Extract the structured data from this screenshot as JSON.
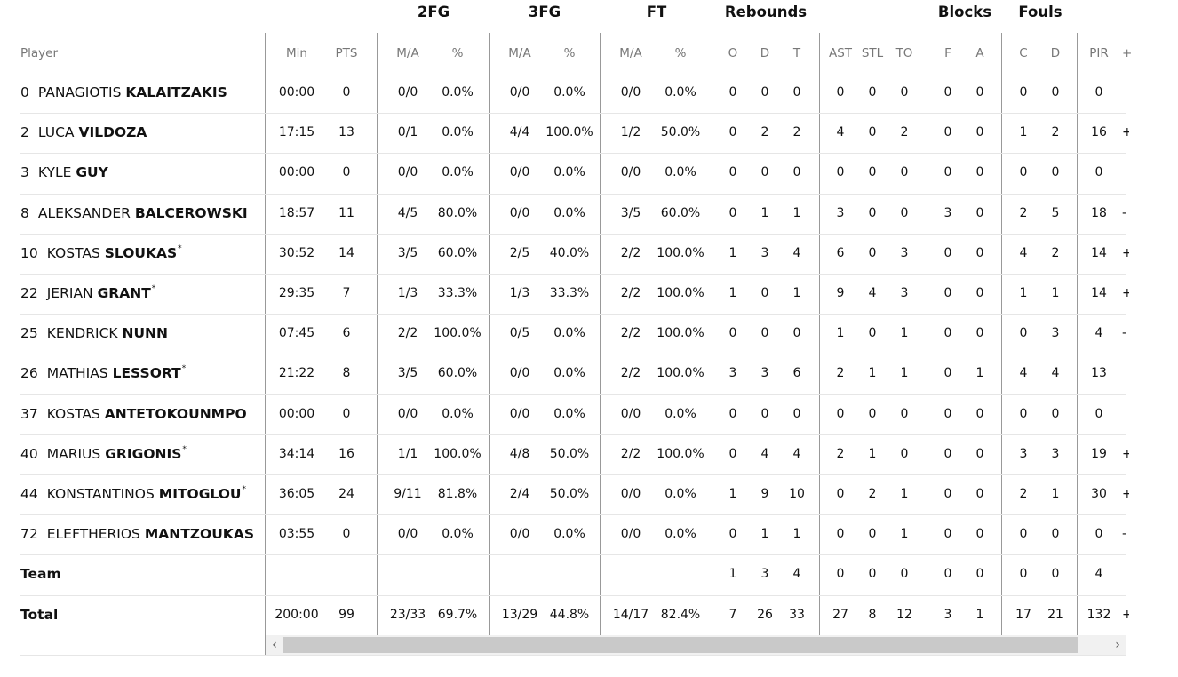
{
  "group_headers": {
    "fg2": "2FG",
    "fg3": "3FG",
    "ft": "FT",
    "rebounds": "Rebounds",
    "blocks": "Blocks",
    "fouls": "Fouls"
  },
  "col_headers": {
    "player": "Player",
    "min": "Min",
    "pts": "PTS",
    "fg2_ma": "M/A",
    "fg2_pct": "%",
    "fg3_ma": "M/A",
    "fg3_pct": "%",
    "ft_ma": "M/A",
    "ft_pct": "%",
    "reb_o": "O",
    "reb_d": "D",
    "reb_t": "T",
    "ast": "AST",
    "stl": "STL",
    "to": "TO",
    "blk_f": "F",
    "blk_a": "A",
    "foul_c": "C",
    "foul_d": "D",
    "pir": "PIR",
    "more": "+"
  },
  "players": [
    {
      "num": "0",
      "first": "PANAGIOTIS",
      "last": "KALAITZAKIS",
      "star": "",
      "min": "00:00",
      "pts": "0",
      "fg2_ma": "0/0",
      "fg2_pct": "0.0%",
      "fg3_ma": "0/0",
      "fg3_pct": "0.0%",
      "ft_ma": "0/0",
      "ft_pct": "0.0%",
      "reb_o": "0",
      "reb_d": "0",
      "reb_t": "0",
      "ast": "0",
      "stl": "0",
      "to": "0",
      "blk_f": "0",
      "blk_a": "0",
      "foul_c": "0",
      "foul_d": "0",
      "pir": "0",
      "pm": ""
    },
    {
      "num": "2",
      "first": "LUCA",
      "last": "VILDOZA",
      "star": "",
      "min": "17:15",
      "pts": "13",
      "fg2_ma": "0/1",
      "fg2_pct": "0.0%",
      "fg3_ma": "4/4",
      "fg3_pct": "100.0%",
      "ft_ma": "1/2",
      "ft_pct": "50.0%",
      "reb_o": "0",
      "reb_d": "2",
      "reb_t": "2",
      "ast": "4",
      "stl": "0",
      "to": "2",
      "blk_f": "0",
      "blk_a": "0",
      "foul_c": "1",
      "foul_d": "2",
      "pir": "16",
      "pm": "+"
    },
    {
      "num": "3",
      "first": "KYLE",
      "last": "GUY",
      "star": "",
      "min": "00:00",
      "pts": "0",
      "fg2_ma": "0/0",
      "fg2_pct": "0.0%",
      "fg3_ma": "0/0",
      "fg3_pct": "0.0%",
      "ft_ma": "0/0",
      "ft_pct": "0.0%",
      "reb_o": "0",
      "reb_d": "0",
      "reb_t": "0",
      "ast": "0",
      "stl": "0",
      "to": "0",
      "blk_f": "0",
      "blk_a": "0",
      "foul_c": "0",
      "foul_d": "0",
      "pir": "0",
      "pm": ""
    },
    {
      "num": "8",
      "first": "ALEKSANDER",
      "last": "BALCEROWSKI",
      "star": "",
      "min": "18:57",
      "pts": "11",
      "fg2_ma": "4/5",
      "fg2_pct": "80.0%",
      "fg3_ma": "0/0",
      "fg3_pct": "0.0%",
      "ft_ma": "3/5",
      "ft_pct": "60.0%",
      "reb_o": "0",
      "reb_d": "1",
      "reb_t": "1",
      "ast": "3",
      "stl": "0",
      "to": "0",
      "blk_f": "3",
      "blk_a": "0",
      "foul_c": "2",
      "foul_d": "5",
      "pir": "18",
      "pm": "-"
    },
    {
      "num": "10",
      "first": "KOSTAS",
      "last": "SLOUKAS",
      "star": "*",
      "min": "30:52",
      "pts": "14",
      "fg2_ma": "3/5",
      "fg2_pct": "60.0%",
      "fg3_ma": "2/5",
      "fg3_pct": "40.0%",
      "ft_ma": "2/2",
      "ft_pct": "100.0%",
      "reb_o": "1",
      "reb_d": "3",
      "reb_t": "4",
      "ast": "6",
      "stl": "0",
      "to": "3",
      "blk_f": "0",
      "blk_a": "0",
      "foul_c": "4",
      "foul_d": "2",
      "pir": "14",
      "pm": "+"
    },
    {
      "num": "22",
      "first": "JERIAN",
      "last": "GRANT",
      "star": "*",
      "min": "29:35",
      "pts": "7",
      "fg2_ma": "1/3",
      "fg2_pct": "33.3%",
      "fg3_ma": "1/3",
      "fg3_pct": "33.3%",
      "ft_ma": "2/2",
      "ft_pct": "100.0%",
      "reb_o": "1",
      "reb_d": "0",
      "reb_t": "1",
      "ast": "9",
      "stl": "4",
      "to": "3",
      "blk_f": "0",
      "blk_a": "0",
      "foul_c": "1",
      "foul_d": "1",
      "pir": "14",
      "pm": "+"
    },
    {
      "num": "25",
      "first": "KENDRICK",
      "last": "NUNN",
      "star": "",
      "min": "07:45",
      "pts": "6",
      "fg2_ma": "2/2",
      "fg2_pct": "100.0%",
      "fg3_ma": "0/5",
      "fg3_pct": "0.0%",
      "ft_ma": "2/2",
      "ft_pct": "100.0%",
      "reb_o": "0",
      "reb_d": "0",
      "reb_t": "0",
      "ast": "1",
      "stl": "0",
      "to": "1",
      "blk_f": "0",
      "blk_a": "0",
      "foul_c": "0",
      "foul_d": "3",
      "pir": "4",
      "pm": "-"
    },
    {
      "num": "26",
      "first": "MATHIAS",
      "last": "LESSORT",
      "star": "*",
      "min": "21:22",
      "pts": "8",
      "fg2_ma": "3/5",
      "fg2_pct": "60.0%",
      "fg3_ma": "0/0",
      "fg3_pct": "0.0%",
      "ft_ma": "2/2",
      "ft_pct": "100.0%",
      "reb_o": "3",
      "reb_d": "3",
      "reb_t": "6",
      "ast": "2",
      "stl": "1",
      "to": "1",
      "blk_f": "0",
      "blk_a": "1",
      "foul_c": "4",
      "foul_d": "4",
      "pir": "13",
      "pm": ""
    },
    {
      "num": "37",
      "first": "KOSTAS",
      "last": "ANTETOKOUNMPO",
      "star": "",
      "min": "00:00",
      "pts": "0",
      "fg2_ma": "0/0",
      "fg2_pct": "0.0%",
      "fg3_ma": "0/0",
      "fg3_pct": "0.0%",
      "ft_ma": "0/0",
      "ft_pct": "0.0%",
      "reb_o": "0",
      "reb_d": "0",
      "reb_t": "0",
      "ast": "0",
      "stl": "0",
      "to": "0",
      "blk_f": "0",
      "blk_a": "0",
      "foul_c": "0",
      "foul_d": "0",
      "pir": "0",
      "pm": ""
    },
    {
      "num": "40",
      "first": "MARIUS",
      "last": "GRIGONIS",
      "star": "*",
      "min": "34:14",
      "pts": "16",
      "fg2_ma": "1/1",
      "fg2_pct": "100.0%",
      "fg3_ma": "4/8",
      "fg3_pct": "50.0%",
      "ft_ma": "2/2",
      "ft_pct": "100.0%",
      "reb_o": "0",
      "reb_d": "4",
      "reb_t": "4",
      "ast": "2",
      "stl": "1",
      "to": "0",
      "blk_f": "0",
      "blk_a": "0",
      "foul_c": "3",
      "foul_d": "3",
      "pir": "19",
      "pm": "+"
    },
    {
      "num": "44",
      "first": "KONSTANTINOS",
      "last": "MITOGLOU",
      "star": "*",
      "min": "36:05",
      "pts": "24",
      "fg2_ma": "9/11",
      "fg2_pct": "81.8%",
      "fg3_ma": "2/4",
      "fg3_pct": "50.0%",
      "ft_ma": "0/0",
      "ft_pct": "0.0%",
      "reb_o": "1",
      "reb_d": "9",
      "reb_t": "10",
      "ast": "0",
      "stl": "2",
      "to": "1",
      "blk_f": "0",
      "blk_a": "0",
      "foul_c": "2",
      "foul_d": "1",
      "pir": "30",
      "pm": "+"
    },
    {
      "num": "72",
      "first": "ELEFTHERIOS",
      "last": "MANTZOUKAS",
      "star": "",
      "min": "03:55",
      "pts": "0",
      "fg2_ma": "0/0",
      "fg2_pct": "0.0%",
      "fg3_ma": "0/0",
      "fg3_pct": "0.0%",
      "ft_ma": "0/0",
      "ft_pct": "0.0%",
      "reb_o": "0",
      "reb_d": "1",
      "reb_t": "1",
      "ast": "0",
      "stl": "0",
      "to": "1",
      "blk_f": "0",
      "blk_a": "0",
      "foul_c": "0",
      "foul_d": "0",
      "pir": "0",
      "pm": "-"
    }
  ],
  "team": {
    "label": "Team",
    "min": "",
    "pts": "",
    "fg2_ma": "",
    "fg2_pct": "",
    "fg3_ma": "",
    "fg3_pct": "",
    "ft_ma": "",
    "ft_pct": "",
    "reb_o": "1",
    "reb_d": "3",
    "reb_t": "4",
    "ast": "0",
    "stl": "0",
    "to": "0",
    "blk_f": "0",
    "blk_a": "0",
    "foul_c": "0",
    "foul_d": "0",
    "pir": "4",
    "pm": ""
  },
  "total": {
    "label": "Total",
    "min": "200:00",
    "pts": "99",
    "fg2_ma": "23/33",
    "fg2_pct": "69.7%",
    "fg3_ma": "13/29",
    "fg3_pct": "44.8%",
    "ft_ma": "14/17",
    "ft_pct": "82.4%",
    "reb_o": "7",
    "reb_d": "26",
    "reb_t": "33",
    "ast": "27",
    "stl": "8",
    "to": "12",
    "blk_f": "3",
    "blk_a": "1",
    "foul_c": "17",
    "foul_d": "21",
    "pir": "132",
    "pm": "+"
  },
  "scrollbar": {
    "left_arrow": "‹",
    "right_arrow": "›"
  }
}
